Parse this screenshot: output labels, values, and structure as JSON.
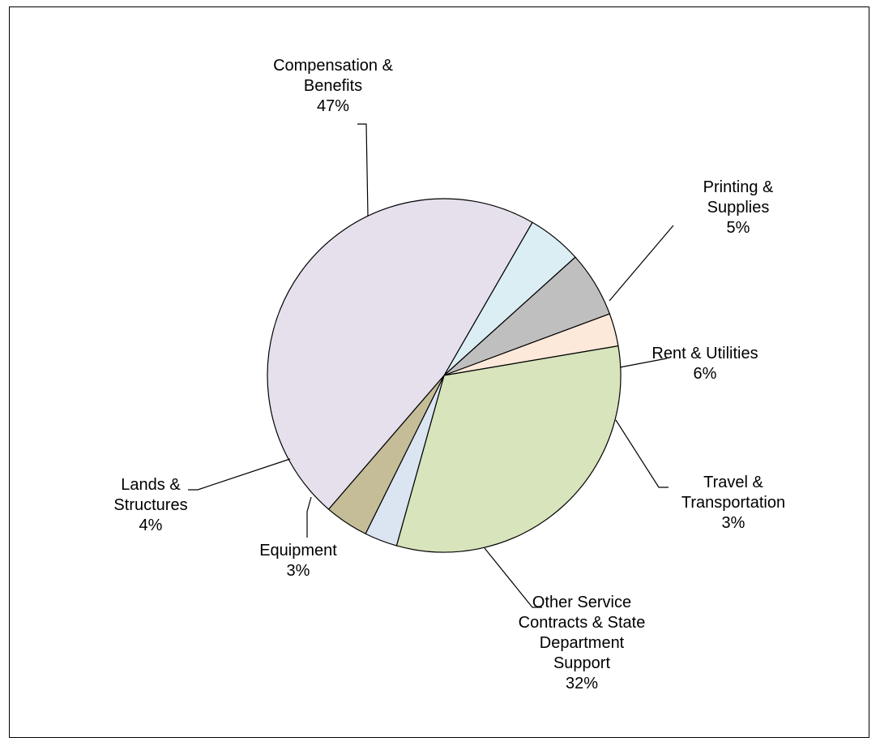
{
  "chart_data": {
    "type": "pie",
    "title": "",
    "start_angle_deg": 30,
    "direction": "clockwise",
    "slices": [
      {
        "label": "Printing & Supplies",
        "label_lines": [
          "Printing &",
          "Supplies"
        ],
        "pct_text": "5%",
        "value": 5,
        "color": "#daeef3"
      },
      {
        "label": "Rent & Utilities",
        "label_lines": [
          "Rent & Utilities"
        ],
        "pct_text": "6%",
        "value": 6,
        "color": "#bfbfbf"
      },
      {
        "label": "Travel & Transportation",
        "label_lines": [
          "Travel &",
          "Transportation"
        ],
        "pct_text": "3%",
        "value": 3,
        "color": "#fde9d9"
      },
      {
        "label": "Other Service Contracts & State Department Support",
        "label_lines": [
          "Other Service",
          "Contracts & State",
          "Department",
          "Support"
        ],
        "pct_text": "32%",
        "value": 32,
        "color": "#d7e4bc"
      },
      {
        "label": "Equipment",
        "label_lines": [
          "Equipment"
        ],
        "pct_text": "3%",
        "value": 3,
        "color": "#dbe5f1"
      },
      {
        "label": "Lands & Structures",
        "label_lines": [
          "Lands &",
          "Structures"
        ],
        "pct_text": "4%",
        "value": 4,
        "color": "#c4bd97"
      },
      {
        "label": "Compensation & Benefits",
        "label_lines": [
          "Compensation &",
          "Benefits"
        ],
        "pct_text": "47%",
        "value": 47,
        "color": "#e5e0ec"
      }
    ]
  }
}
